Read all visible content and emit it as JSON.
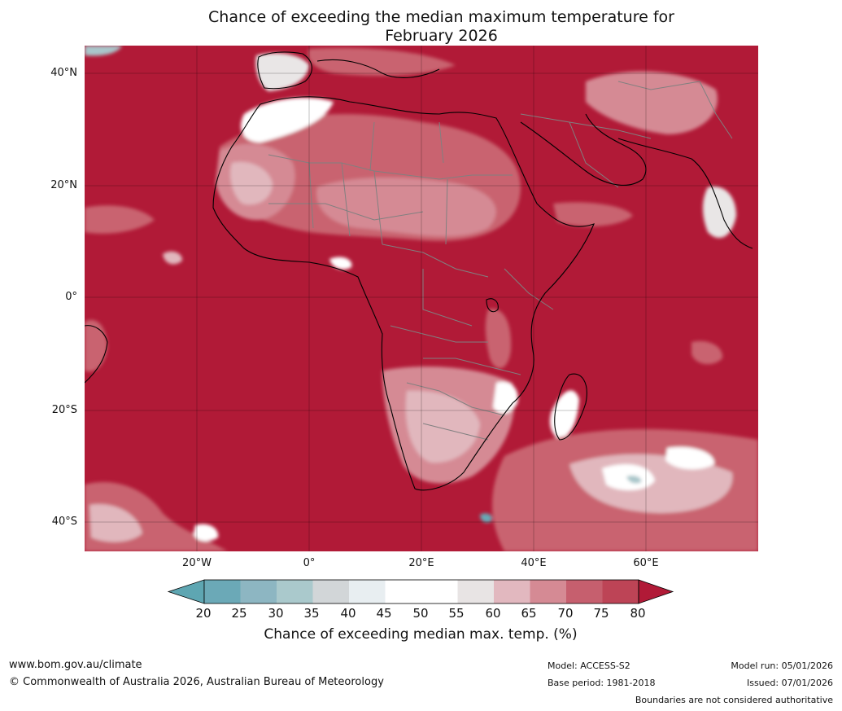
{
  "title": {
    "line1": "Chance of exceeding the median maximum temperature for",
    "line2": "February 2026"
  },
  "map": {
    "lat_labels": [
      "40°N",
      "20°N",
      "0°",
      "20°S",
      "40°S"
    ],
    "lon_labels": [
      "20°W",
      "0°",
      "20°E",
      "40°E",
      "60°E"
    ],
    "extent": {
      "lon_min": -40,
      "lon_max": 80,
      "lat_min": -45,
      "lat_max": 45
    },
    "dominant_category": "75-80+",
    "colors": {
      "c80": "#b11a37",
      "c75": "#c2495a",
      "c70": "#c9636f",
      "c65": "#d58a94",
      "c60": "#e1b7bd",
      "c55": "#e9e6e6",
      "c45": "#ffffff",
      "c40": "#e7edf0",
      "c35": "#a9c6ca",
      "c25": "#68a9b6",
      "border": "#808080",
      "coast": "#000000"
    }
  },
  "colorbar": {
    "ticks": [
      "20",
      "25",
      "30",
      "35",
      "40",
      "45",
      "50",
      "55",
      "60",
      "65",
      "70",
      "75",
      "80"
    ],
    "colors": [
      "#5ea6b2",
      "#6ba9b7",
      "#8db6c2",
      "#aac9cc",
      "#d2d6d8",
      "#e8eef1",
      "#ffffff",
      "#ffffff",
      "#e8e4e4",
      "#e2b8bf",
      "#d58a94",
      "#c65f6e",
      "#bd4456",
      "#b11a37"
    ],
    "label": "Chance of exceeding median max. temp. (%)"
  },
  "footer": {
    "website": "www.bom.gov.au/climate",
    "copyright": "© Commonwealth of Australia 2026, Australian Bureau of Meteorology",
    "model": "Model: ACCESS-S2",
    "base_period": "Base period: 1981-2018",
    "model_run": "Model run: 05/01/2026",
    "issued": "Issued: 07/01/2026",
    "disclaimer": "Boundaries are not considered authoritative"
  }
}
